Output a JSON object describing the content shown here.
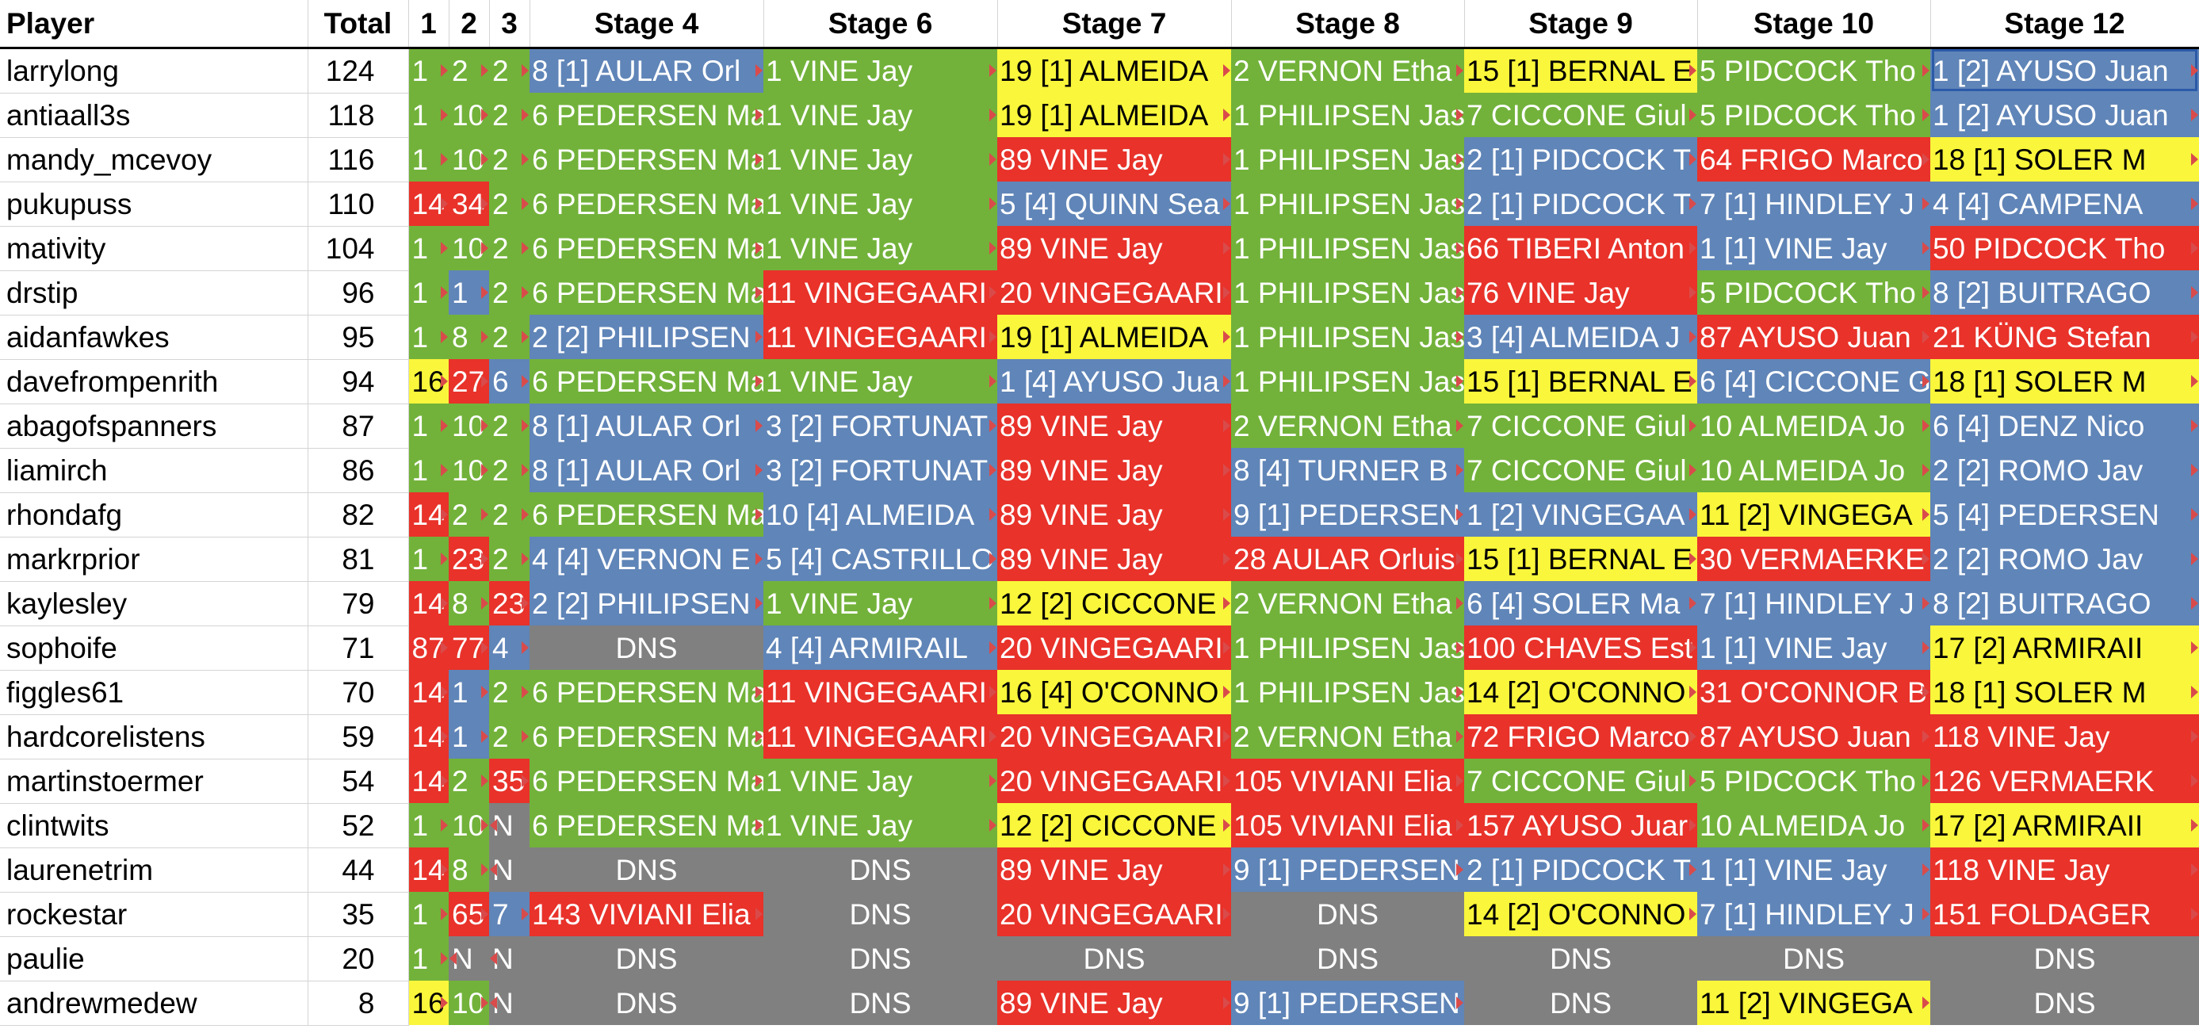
{
  "headers": [
    "Player",
    "Total",
    "1",
    "2",
    "3",
    "Stage 4",
    "Stage 6",
    "Stage 7",
    "Stage 8",
    "Stage 9",
    "Stage 10",
    "Stage 12"
  ],
  "colors": {
    "green": "#72b23a",
    "red": "#e8322a",
    "blue": "#6085b8",
    "yellow": "#f9f63b",
    "grey": "#808080"
  },
  "rows": [
    {
      "player": "larrylong",
      "total": "124",
      "cells": [
        {
          "t": "1",
          "c": "green"
        },
        {
          "t": "2",
          "c": "green"
        },
        {
          "t": "2",
          "c": "green"
        },
        {
          "t": "8 [1] AULAR Orl",
          "c": "blue"
        },
        {
          "t": "1 VINE Jay",
          "c": "green"
        },
        {
          "t": "19 [1] ALMEIDA",
          "c": "yellow"
        },
        {
          "t": "2 VERNON Etha",
          "c": "green"
        },
        {
          "t": "15 [1] BERNAL E",
          "c": "yellow"
        },
        {
          "t": "5 PIDCOCK Tho",
          "c": "green"
        },
        {
          "t": "1 [2] AYUSO Juan",
          "c": "blue"
        }
      ]
    },
    {
      "player": "antiaall3s",
      "total": "118",
      "cells": [
        {
          "t": "1",
          "c": "green"
        },
        {
          "t": "10",
          "c": "green"
        },
        {
          "t": "2",
          "c": "green"
        },
        {
          "t": "6 PEDERSEN Ma",
          "c": "green"
        },
        {
          "t": "1 VINE Jay",
          "c": "green"
        },
        {
          "t": "19 [1] ALMEIDA",
          "c": "yellow"
        },
        {
          "t": "1 PHILIPSEN Jas",
          "c": "green"
        },
        {
          "t": "7 CICCONE Giul",
          "c": "green"
        },
        {
          "t": "5 PIDCOCK Tho",
          "c": "green"
        },
        {
          "t": "1 [2] AYUSO Juan",
          "c": "blue"
        }
      ]
    },
    {
      "player": "mandy_mcevoy",
      "total": "116",
      "cells": [
        {
          "t": "1",
          "c": "green"
        },
        {
          "t": "10",
          "c": "green"
        },
        {
          "t": "2",
          "c": "green"
        },
        {
          "t": "6 PEDERSEN Ma",
          "c": "green"
        },
        {
          "t": "1 VINE Jay",
          "c": "green"
        },
        {
          "t": "89 VINE Jay",
          "c": "red"
        },
        {
          "t": "1 PHILIPSEN Jas",
          "c": "green"
        },
        {
          "t": "2 [1] PIDCOCK T",
          "c": "blue"
        },
        {
          "t": "64 FRIGO Marco",
          "c": "red"
        },
        {
          "t": "18 [1] SOLER M",
          "c": "yellow"
        }
      ]
    },
    {
      "player": "pukupuss",
      "total": "110",
      "cells": [
        {
          "t": "14",
          "c": "red"
        },
        {
          "t": "34",
          "c": "red"
        },
        {
          "t": "2",
          "c": "green"
        },
        {
          "t": "6 PEDERSEN Ma",
          "c": "green"
        },
        {
          "t": "1 VINE Jay",
          "c": "green"
        },
        {
          "t": "5 [4] QUINN Sea",
          "c": "blue"
        },
        {
          "t": "1 PHILIPSEN Jas",
          "c": "green"
        },
        {
          "t": "2 [1] PIDCOCK T",
          "c": "blue"
        },
        {
          "t": "7 [1] HINDLEY J",
          "c": "blue"
        },
        {
          "t": "4 [4] CAMPENA",
          "c": "blue"
        }
      ]
    },
    {
      "player": "mativity",
      "total": "104",
      "cells": [
        {
          "t": "1",
          "c": "green"
        },
        {
          "t": "10",
          "c": "green"
        },
        {
          "t": "2",
          "c": "green"
        },
        {
          "t": "6 PEDERSEN Ma",
          "c": "green"
        },
        {
          "t": "1 VINE Jay",
          "c": "green"
        },
        {
          "t": "89 VINE Jay",
          "c": "red"
        },
        {
          "t": "1 PHILIPSEN Jas",
          "c": "green"
        },
        {
          "t": "66 TIBERI Anton",
          "c": "red"
        },
        {
          "t": "1 [1] VINE Jay",
          "c": "blue"
        },
        {
          "t": "50 PIDCOCK Tho",
          "c": "red"
        }
      ]
    },
    {
      "player": "drstip",
      "total": "96",
      "cells": [
        {
          "t": "1",
          "c": "green"
        },
        {
          "t": "1",
          "c": "blue"
        },
        {
          "t": "2",
          "c": "green"
        },
        {
          "t": "6 PEDERSEN Ma",
          "c": "green"
        },
        {
          "t": "11 VINGEGAARI",
          "c": "red"
        },
        {
          "t": "20 VINGEGAARI",
          "c": "red"
        },
        {
          "t": "1 PHILIPSEN Jas",
          "c": "green"
        },
        {
          "t": "76 VINE Jay",
          "c": "red"
        },
        {
          "t": "5 PIDCOCK Tho",
          "c": "green"
        },
        {
          "t": "8 [2] BUITRAGO",
          "c": "blue"
        }
      ]
    },
    {
      "player": "aidanfawkes",
      "total": "95",
      "cells": [
        {
          "t": "1",
          "c": "green"
        },
        {
          "t": "8",
          "c": "green"
        },
        {
          "t": "2",
          "c": "green"
        },
        {
          "t": "2 [2] PHILIPSEN",
          "c": "blue"
        },
        {
          "t": "11 VINGEGAARI",
          "c": "red"
        },
        {
          "t": "19 [1] ALMEIDA",
          "c": "yellow"
        },
        {
          "t": "1 PHILIPSEN Jas",
          "c": "green"
        },
        {
          "t": "3 [4] ALMEIDA J",
          "c": "blue"
        },
        {
          "t": "87 AYUSO Juan",
          "c": "red"
        },
        {
          "t": "21 KÜNG Stefan",
          "c": "red"
        }
      ]
    },
    {
      "player": "davefrompenrith",
      "total": "94",
      "cells": [
        {
          "t": "16",
          "c": "yellow"
        },
        {
          "t": "27",
          "c": "red"
        },
        {
          "t": "6",
          "c": "blue"
        },
        {
          "t": "6 PEDERSEN Ma",
          "c": "green"
        },
        {
          "t": "1 VINE Jay",
          "c": "green"
        },
        {
          "t": "1 [4] AYUSO Jua",
          "c": "blue"
        },
        {
          "t": "1 PHILIPSEN Jas",
          "c": "green"
        },
        {
          "t": "15 [1] BERNAL E",
          "c": "yellow"
        },
        {
          "t": "6 [4] CICCONE G",
          "c": "blue"
        },
        {
          "t": "18 [1] SOLER M",
          "c": "yellow"
        }
      ]
    },
    {
      "player": "abagofspanners",
      "total": "87",
      "cells": [
        {
          "t": "1",
          "c": "green"
        },
        {
          "t": "10",
          "c": "green"
        },
        {
          "t": "2",
          "c": "green"
        },
        {
          "t": "8 [1] AULAR Orl",
          "c": "blue"
        },
        {
          "t": "3 [2] FORTUNAT",
          "c": "blue"
        },
        {
          "t": "89 VINE Jay",
          "c": "red"
        },
        {
          "t": "2 VERNON Etha",
          "c": "green"
        },
        {
          "t": "7 CICCONE Giul",
          "c": "green"
        },
        {
          "t": "10 ALMEIDA Jo",
          "c": "green"
        },
        {
          "t": "6 [4] DENZ Nico",
          "c": "blue"
        }
      ]
    },
    {
      "player": "liamirch",
      "total": "86",
      "cells": [
        {
          "t": "1",
          "c": "green"
        },
        {
          "t": "10",
          "c": "green"
        },
        {
          "t": "2",
          "c": "green"
        },
        {
          "t": "8 [1] AULAR Orl",
          "c": "blue"
        },
        {
          "t": "3 [2] FORTUNAT",
          "c": "blue"
        },
        {
          "t": "89 VINE Jay",
          "c": "red"
        },
        {
          "t": "8 [4] TURNER B",
          "c": "blue"
        },
        {
          "t": "7 CICCONE Giul",
          "c": "green"
        },
        {
          "t": "10 ALMEIDA Jo",
          "c": "green"
        },
        {
          "t": "2 [2] ROMO Jav",
          "c": "blue"
        }
      ]
    },
    {
      "player": "rhondafg",
      "total": "82",
      "cells": [
        {
          "t": "14",
          "c": "red"
        },
        {
          "t": "2",
          "c": "green"
        },
        {
          "t": "2",
          "c": "green"
        },
        {
          "t": "6 PEDERSEN Ma",
          "c": "green"
        },
        {
          "t": "10 [4] ALMEIDA",
          "c": "blue"
        },
        {
          "t": "89 VINE Jay",
          "c": "red"
        },
        {
          "t": "9 [1] PEDERSEN",
          "c": "blue"
        },
        {
          "t": "1 [2] VINGEGAA",
          "c": "blue"
        },
        {
          "t": "11 [2] VINGEGA",
          "c": "yellow"
        },
        {
          "t": "5 [4] PEDERSEN",
          "c": "blue"
        }
      ]
    },
    {
      "player": "markrprior",
      "total": "81",
      "cells": [
        {
          "t": "1",
          "c": "green"
        },
        {
          "t": "23",
          "c": "red"
        },
        {
          "t": "2",
          "c": "green"
        },
        {
          "t": "4 [4] VERNON E",
          "c": "blue"
        },
        {
          "t": "5 [4] CASTRILLO",
          "c": "blue"
        },
        {
          "t": "89 VINE Jay",
          "c": "red"
        },
        {
          "t": "28 AULAR Orluis",
          "c": "red"
        },
        {
          "t": "15 [1] BERNAL E",
          "c": "yellow"
        },
        {
          "t": "30 VERMAERKE",
          "c": "red"
        },
        {
          "t": "2 [2] ROMO Jav",
          "c": "blue"
        }
      ]
    },
    {
      "player": "kaylesley",
      "total": "79",
      "cells": [
        {
          "t": "14",
          "c": "red"
        },
        {
          "t": "8",
          "c": "green"
        },
        {
          "t": "23",
          "c": "red"
        },
        {
          "t": "2 [2] PHILIPSEN",
          "c": "blue"
        },
        {
          "t": "1 VINE Jay",
          "c": "green"
        },
        {
          "t": "12 [2] CICCONE",
          "c": "yellow"
        },
        {
          "t": "2 VERNON Etha",
          "c": "green"
        },
        {
          "t": "6 [4] SOLER Ma",
          "c": "blue"
        },
        {
          "t": "7 [1] HINDLEY J",
          "c": "blue"
        },
        {
          "t": "8 [2] BUITRAGO",
          "c": "blue"
        }
      ]
    },
    {
      "player": "sophoife",
      "total": "71",
      "cells": [
        {
          "t": "87",
          "c": "red"
        },
        {
          "t": "77",
          "c": "red"
        },
        {
          "t": "4",
          "c": "blue"
        },
        {
          "t": "DNS",
          "c": "grey"
        },
        {
          "t": "4 [4] ARMIRAIL",
          "c": "blue"
        },
        {
          "t": "20 VINGEGAARI",
          "c": "red"
        },
        {
          "t": "1 PHILIPSEN Jas",
          "c": "green"
        },
        {
          "t": "100 CHAVES Est",
          "c": "red"
        },
        {
          "t": "1 [1] VINE Jay",
          "c": "blue"
        },
        {
          "t": "17 [2] ARMIRAII",
          "c": "yellow"
        }
      ]
    },
    {
      "player": "figgles61",
      "total": "70",
      "cells": [
        {
          "t": "14",
          "c": "red"
        },
        {
          "t": "1",
          "c": "blue"
        },
        {
          "t": "2",
          "c": "green"
        },
        {
          "t": "6 PEDERSEN Ma",
          "c": "green"
        },
        {
          "t": "11 VINGEGAARI",
          "c": "red"
        },
        {
          "t": "16 [4] O'CONNO",
          "c": "yellow"
        },
        {
          "t": "1 PHILIPSEN Jas",
          "c": "green"
        },
        {
          "t": "14 [2] O'CONNO",
          "c": "yellow"
        },
        {
          "t": "31 O'CONNOR B",
          "c": "red"
        },
        {
          "t": "18 [1] SOLER M",
          "c": "yellow"
        }
      ]
    },
    {
      "player": "hardcorelistens",
      "total": "59",
      "cells": [
        {
          "t": "14",
          "c": "red"
        },
        {
          "t": "1",
          "c": "blue"
        },
        {
          "t": "2",
          "c": "green"
        },
        {
          "t": "6 PEDERSEN Ma",
          "c": "green"
        },
        {
          "t": "11 VINGEGAARI",
          "c": "red"
        },
        {
          "t": "20 VINGEGAARI",
          "c": "red"
        },
        {
          "t": "2 VERNON Etha",
          "c": "green"
        },
        {
          "t": "72 FRIGO Marco",
          "c": "red"
        },
        {
          "t": "87 AYUSO Juan",
          "c": "red"
        },
        {
          "t": "118 VINE Jay",
          "c": "red"
        }
      ]
    },
    {
      "player": "martinstoermer",
      "total": "54",
      "cells": [
        {
          "t": "14",
          "c": "red"
        },
        {
          "t": "2",
          "c": "green"
        },
        {
          "t": "35",
          "c": "red"
        },
        {
          "t": "6 PEDERSEN Ma",
          "c": "green"
        },
        {
          "t": "1 VINE Jay",
          "c": "green"
        },
        {
          "t": "20 VINGEGAARI",
          "c": "red"
        },
        {
          "t": "105 VIVIANI Elia",
          "c": "red"
        },
        {
          "t": "7 CICCONE Giul",
          "c": "green"
        },
        {
          "t": "5 PIDCOCK Tho",
          "c": "green"
        },
        {
          "t": "126 VERMAERK",
          "c": "red"
        }
      ]
    },
    {
      "player": "clintwits",
      "total": "52",
      "cells": [
        {
          "t": "1",
          "c": "green"
        },
        {
          "t": "10",
          "c": "green"
        },
        {
          "t": "N",
          "c": "grey"
        },
        {
          "t": "6 PEDERSEN Ma",
          "c": "green"
        },
        {
          "t": "1 VINE Jay",
          "c": "green"
        },
        {
          "t": "12 [2] CICCONE",
          "c": "yellow"
        },
        {
          "t": "105 VIVIANI Elia",
          "c": "red"
        },
        {
          "t": "157 AYUSO Juar",
          "c": "red"
        },
        {
          "t": "10 ALMEIDA Jo",
          "c": "green"
        },
        {
          "t": "17 [2] ARMIRAII",
          "c": "yellow"
        }
      ]
    },
    {
      "player": "laurenetrim",
      "total": "44",
      "cells": [
        {
          "t": "14",
          "c": "red"
        },
        {
          "t": "8",
          "c": "green"
        },
        {
          "t": "N",
          "c": "grey"
        },
        {
          "t": "DNS",
          "c": "grey"
        },
        {
          "t": "DNS",
          "c": "grey"
        },
        {
          "t": "89 VINE Jay",
          "c": "red"
        },
        {
          "t": "9 [1] PEDERSEN",
          "c": "blue"
        },
        {
          "t": "2 [1] PIDCOCK T",
          "c": "blue"
        },
        {
          "t": "1 [1] VINE Jay",
          "c": "blue"
        },
        {
          "t": "118 VINE Jay",
          "c": "red"
        }
      ]
    },
    {
      "player": "rockestar",
      "total": "35",
      "cells": [
        {
          "t": "1",
          "c": "green"
        },
        {
          "t": "65",
          "c": "red"
        },
        {
          "t": "7",
          "c": "blue"
        },
        {
          "t": "143 VIVIANI Elia",
          "c": "red"
        },
        {
          "t": "DNS",
          "c": "grey"
        },
        {
          "t": "20 VINGEGAARI",
          "c": "red"
        },
        {
          "t": "DNS",
          "c": "grey"
        },
        {
          "t": "14 [2] O'CONNO",
          "c": "yellow"
        },
        {
          "t": "7 [1] HINDLEY J",
          "c": "blue"
        },
        {
          "t": "151 FOLDAGER",
          "c": "red"
        }
      ]
    },
    {
      "player": "paulie",
      "total": "20",
      "cells": [
        {
          "t": "1",
          "c": "green"
        },
        {
          "t": "N",
          "c": "grey"
        },
        {
          "t": "N",
          "c": "grey"
        },
        {
          "t": "DNS",
          "c": "grey"
        },
        {
          "t": "DNS",
          "c": "grey"
        },
        {
          "t": "DNS",
          "c": "grey"
        },
        {
          "t": "DNS",
          "c": "grey"
        },
        {
          "t": "DNS",
          "c": "grey"
        },
        {
          "t": "DNS",
          "c": "grey"
        },
        {
          "t": "DNS",
          "c": "grey"
        }
      ]
    },
    {
      "player": "andrewmedew",
      "total": "8",
      "cells": [
        {
          "t": "16",
          "c": "yellow"
        },
        {
          "t": "10",
          "c": "green"
        },
        {
          "t": "N",
          "c": "grey"
        },
        {
          "t": "DNS",
          "c": "grey"
        },
        {
          "t": "DNS",
          "c": "grey"
        },
        {
          "t": "89 VINE Jay",
          "c": "red"
        },
        {
          "t": "9 [1] PEDERSEN",
          "c": "blue"
        },
        {
          "t": "DNS",
          "c": "grey"
        },
        {
          "t": "11 [2] VINGEGA",
          "c": "yellow"
        },
        {
          "t": "DNS",
          "c": "grey"
        }
      ]
    }
  ]
}
